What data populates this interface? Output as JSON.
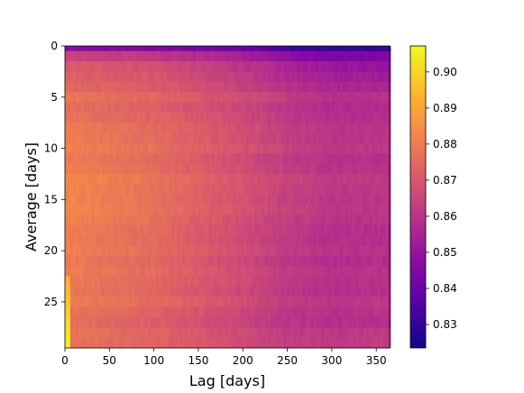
{
  "chart_data": {
    "type": "heatmap",
    "xlabel": "Lag [days]",
    "ylabel": "Average [days]",
    "xlim": [
      0,
      365
    ],
    "ylim": [
      0,
      29.5
    ],
    "y_inverted": true,
    "xticks": [
      0,
      50,
      100,
      150,
      200,
      250,
      300,
      350
    ],
    "yticks": [
      0,
      5,
      10,
      15,
      20,
      25
    ],
    "colormap": "plasma",
    "colorbar": {
      "range": [
        0.8235,
        0.9072
      ],
      "ticks": [
        "0.83",
        "0.84",
        "0.85",
        "0.86",
        "0.87",
        "0.88",
        "0.89",
        "0.90"
      ]
    },
    "grid": false,
    "rows": 30,
    "row_profiles": [
      {
        "average": 0,
        "values_at_lag": [
          [
            0,
            0.846
          ],
          [
            100,
            0.845
          ],
          [
            200,
            0.84
          ],
          [
            250,
            0.832
          ],
          [
            300,
            0.83
          ],
          [
            365,
            0.83
          ]
        ]
      },
      {
        "average": 1,
        "values_at_lag": [
          [
            0,
            0.866
          ],
          [
            100,
            0.863
          ],
          [
            200,
            0.856
          ],
          [
            250,
            0.85
          ],
          [
            300,
            0.845
          ],
          [
            365,
            0.846
          ]
        ]
      },
      {
        "average": 2,
        "values_at_lag": [
          [
            0,
            0.872
          ],
          [
            100,
            0.869
          ],
          [
            200,
            0.861
          ],
          [
            250,
            0.856
          ],
          [
            300,
            0.852
          ],
          [
            365,
            0.852
          ]
        ]
      },
      {
        "average": 5,
        "values_at_lag": [
          [
            0,
            0.877
          ],
          [
            100,
            0.873
          ],
          [
            200,
            0.866
          ],
          [
            250,
            0.861
          ],
          [
            300,
            0.858
          ],
          [
            365,
            0.858
          ]
        ]
      },
      {
        "average": 10,
        "values_at_lag": [
          [
            0,
            0.881
          ],
          [
            100,
            0.876
          ],
          [
            200,
            0.868
          ],
          [
            250,
            0.863
          ],
          [
            300,
            0.86
          ],
          [
            365,
            0.86
          ]
        ]
      },
      {
        "average": 15,
        "values_at_lag": [
          [
            0,
            0.882
          ],
          [
            100,
            0.877
          ],
          [
            200,
            0.868
          ],
          [
            250,
            0.863
          ],
          [
            300,
            0.86
          ],
          [
            365,
            0.86
          ]
        ]
      },
      {
        "average": 20,
        "values_at_lag": [
          [
            0,
            0.881
          ],
          [
            100,
            0.876
          ],
          [
            200,
            0.867
          ],
          [
            250,
            0.862
          ],
          [
            300,
            0.859
          ],
          [
            365,
            0.859
          ]
        ]
      },
      {
        "average": 25,
        "values_at_lag": [
          [
            0,
            0.879
          ],
          [
            100,
            0.874
          ],
          [
            200,
            0.866
          ],
          [
            250,
            0.861
          ],
          [
            300,
            0.859
          ],
          [
            365,
            0.86
          ]
        ]
      },
      {
        "average": 29,
        "values_at_lag": [
          [
            0,
            0.876
          ],
          [
            100,
            0.872
          ],
          [
            200,
            0.865
          ],
          [
            250,
            0.861
          ],
          [
            300,
            0.86
          ],
          [
            365,
            0.861
          ]
        ]
      }
    ],
    "annotations": [
      {
        "region": "lag 0-5, average 23-29.5",
        "value": 0.905
      }
    ]
  }
}
